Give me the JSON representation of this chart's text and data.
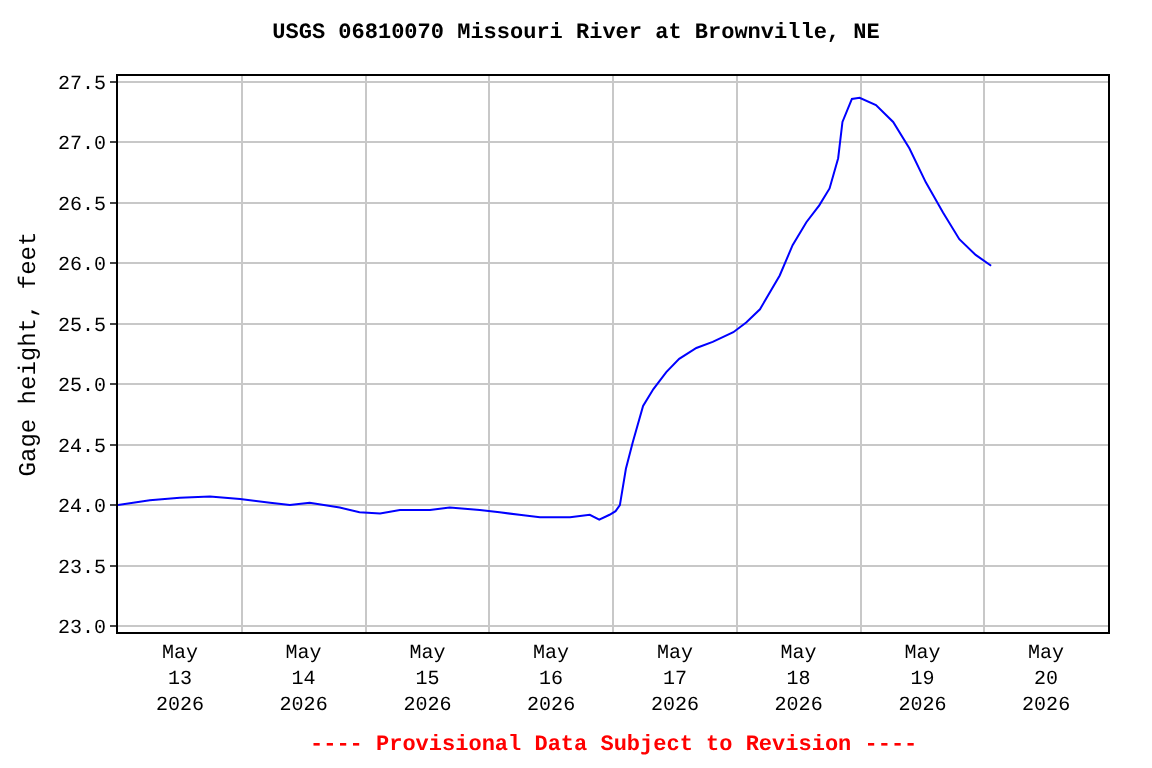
{
  "chart_data": {
    "type": "line",
    "title": "USGS 06810070 Missouri River at Brownville, NE",
    "ylabel": "Gage height, feet",
    "annotations": [
      "---- Provisional Data Subject to Revision ----"
    ],
    "x": [
      "2026-05-13T00:00",
      "2026-05-13T06:10",
      "2026-05-13T12:00",
      "2026-05-13T17:50",
      "2026-05-13T23:40",
      "2026-05-14T05:30",
      "2026-05-14T09:20",
      "2026-05-14T13:10",
      "2026-05-14T19:00",
      "2026-05-14T22:50",
      "2026-05-15T02:50",
      "2026-05-15T06:40",
      "2026-05-15T12:30",
      "2026-05-15T16:20",
      "2026-05-15T22:10",
      "2026-05-16T02:00",
      "2026-05-16T05:50",
      "2026-05-16T09:50",
      "2026-05-16T15:40",
      "2026-05-16T19:30",
      "2026-05-16T21:20",
      "2026-05-16T23:20",
      "2026-05-17T00:30",
      "2026-05-17T01:20",
      "2026-05-17T02:30",
      "2026-05-17T03:50",
      "2026-05-17T05:50",
      "2026-05-17T07:50",
      "2026-05-17T10:20",
      "2026-05-17T12:50",
      "2026-05-17T16:10",
      "2026-05-17T19:20",
      "2026-05-17T23:20",
      "2026-05-18T01:50",
      "2026-05-18T04:30",
      "2026-05-18T08:20",
      "2026-05-18T10:50",
      "2026-05-18T13:30",
      "2026-05-18T16:00",
      "2026-05-18T18:00",
      "2026-05-18T19:40",
      "2026-05-18T20:30",
      "2026-05-18T22:20",
      "2026-05-18T23:50",
      "2026-05-19T03:00",
      "2026-05-19T06:20",
      "2026-05-19T09:30",
      "2026-05-19T12:40",
      "2026-05-19T16:00",
      "2026-05-19T19:10",
      "2026-05-19T22:20",
      "2026-05-20T01:20"
    ],
    "series": [
      {
        "color": "#0000ff",
        "values": [
          24.0,
          24.04,
          24.06,
          24.07,
          24.05,
          24.02,
          24.0,
          24.02,
          23.98,
          23.94,
          23.93,
          23.96,
          23.96,
          23.98,
          23.96,
          23.94,
          23.92,
          23.9,
          23.9,
          23.92,
          23.88,
          23.92,
          23.95,
          24.0,
          24.3,
          24.52,
          24.82,
          24.96,
          25.1,
          25.21,
          25.3,
          25.35,
          25.43,
          25.51,
          25.62,
          25.9,
          26.15,
          26.34,
          26.48,
          26.62,
          26.87,
          27.17,
          27.36,
          27.37,
          27.31,
          27.17,
          26.95,
          26.67,
          26.42,
          26.2,
          26.07,
          25.98
        ]
      }
    ],
    "xlim": [
      "2026-05-13T00:00",
      "2026-05-21T00:00"
    ],
    "xticks": [
      {
        "value": "2026-05-13T12:00",
        "label": "May\n13\n2026"
      },
      {
        "value": "2026-05-14T12:00",
        "label": "May\n14\n2026"
      },
      {
        "value": "2026-05-15T12:00",
        "label": "May\n15\n2026"
      },
      {
        "value": "2026-05-16T12:00",
        "label": "May\n16\n2026"
      },
      {
        "value": "2026-05-17T12:00",
        "label": "May\n17\n2026"
      },
      {
        "value": "2026-05-18T12:00",
        "label": "May\n18\n2026"
      },
      {
        "value": "2026-05-19T12:00",
        "label": "May\n19\n2026"
      },
      {
        "value": "2026-05-20T12:00",
        "label": "May\n20\n2026"
      },
      {
        "value": "2026-05-14",
        "label": null
      },
      {
        "value": "2026-05-15",
        "label": null
      },
      {
        "value": "2026-05-16",
        "label": null
      },
      {
        "value": "2026-05-17",
        "label": null
      },
      {
        "value": "2026-05-18",
        "label": null
      },
      {
        "value": "2026-05-19",
        "label": null
      },
      {
        "value": "2026-05-20",
        "label": null
      }
    ],
    "ylim": [
      22.95,
      27.55
    ],
    "yticks": [
      {
        "value": 23.0,
        "label": "23.0"
      },
      {
        "value": 23.5,
        "label": "23.5"
      },
      {
        "value": 24.0,
        "label": "24.0"
      },
      {
        "value": 24.5,
        "label": "24.5"
      },
      {
        "value": 25.0,
        "label": "25.0"
      },
      {
        "value": 25.5,
        "label": "25.5"
      },
      {
        "value": 26.0,
        "label": "26.0"
      },
      {
        "value": 26.5,
        "label": "26.5"
      },
      {
        "value": 27.0,
        "label": "27.0"
      },
      {
        "value": 27.5,
        "label": "27.5"
      }
    ],
    "grid": true,
    "marker": "none",
    "line_style": "solid"
  }
}
